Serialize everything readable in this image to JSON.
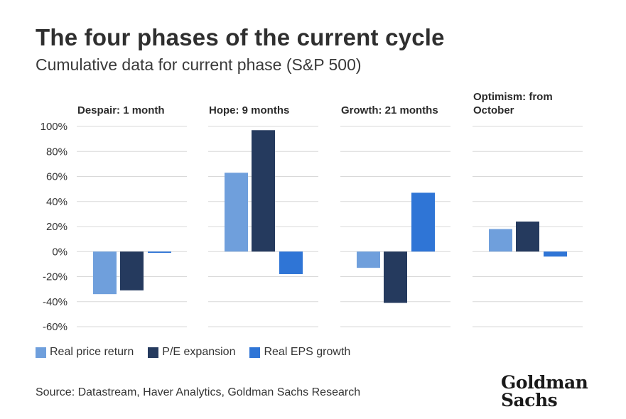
{
  "title": "The four phases of the current cycle",
  "subtitle": "Cumulative data for current phase (S&P 500)",
  "source": "Source: Datastream, Haver Analytics, Goldman Sachs Research",
  "logo": {
    "line1": "Goldman",
    "line2": "Sachs"
  },
  "colors": {
    "real_price_return": "#6f9fdc",
    "pe_expansion": "#253a5e",
    "real_eps_growth": "#2f75d6",
    "grid": "#d9d9d9",
    "axis_text": "#333333"
  },
  "legend": [
    {
      "label": "Real price return",
      "color": "#6f9fdc"
    },
    {
      "label": "P/E expansion",
      "color": "#253a5e"
    },
    {
      "label": "Real EPS growth",
      "color": "#2f75d6"
    }
  ],
  "chart_data": {
    "type": "bar",
    "title": "The four phases of the current cycle",
    "subtitle": "Cumulative data for current phase (S&P 500)",
    "ylim": [
      -60,
      100
    ],
    "yticks": [
      100,
      80,
      60,
      40,
      20,
      0,
      -20,
      -40,
      -60
    ],
    "ytick_labels": [
      "100%",
      "80%",
      "60%",
      "40%",
      "20%",
      "0%",
      "-20%",
      "-40%",
      "-60%"
    ],
    "grid": true,
    "legend_position": "bottom-left",
    "series_names": [
      "Real price return",
      "P/E expansion",
      "Real EPS growth"
    ],
    "panels": [
      {
        "title": [
          "Despair: 1 month"
        ],
        "values": [
          -34,
          -31,
          -1
        ]
      },
      {
        "title": [
          "Hope: 9 months"
        ],
        "values": [
          63,
          97,
          -18
        ]
      },
      {
        "title": [
          "Growth: 21 months"
        ],
        "values": [
          -13,
          -41,
          47
        ]
      },
      {
        "title": [
          "Optimism: from",
          "October"
        ],
        "values": [
          18,
          24,
          -4
        ]
      }
    ]
  }
}
